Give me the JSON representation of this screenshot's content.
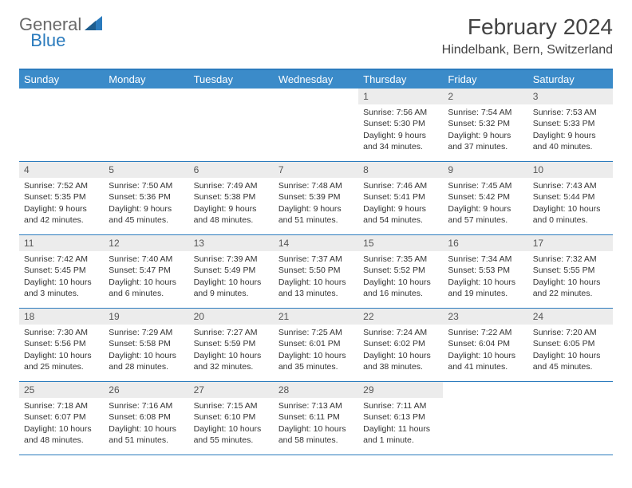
{
  "logo": {
    "text1": "General",
    "text2": "Blue"
  },
  "title": "February 2024",
  "location": "Hindelbank, Bern, Switzerland",
  "colors": {
    "header_bg": "#3b8bc9",
    "border": "#2b7bbd",
    "daynum_bg": "#ececec",
    "logo_gray": "#6a6a6a",
    "logo_blue": "#2b7bbd"
  },
  "weekdays": [
    "Sunday",
    "Monday",
    "Tuesday",
    "Wednesday",
    "Thursday",
    "Friday",
    "Saturday"
  ],
  "leading_blanks": 4,
  "days": [
    {
      "n": "1",
      "sunrise": "7:56 AM",
      "sunset": "5:30 PM",
      "daylight": "9 hours and 34 minutes."
    },
    {
      "n": "2",
      "sunrise": "7:54 AM",
      "sunset": "5:32 PM",
      "daylight": "9 hours and 37 minutes."
    },
    {
      "n": "3",
      "sunrise": "7:53 AM",
      "sunset": "5:33 PM",
      "daylight": "9 hours and 40 minutes."
    },
    {
      "n": "4",
      "sunrise": "7:52 AM",
      "sunset": "5:35 PM",
      "daylight": "9 hours and 42 minutes."
    },
    {
      "n": "5",
      "sunrise": "7:50 AM",
      "sunset": "5:36 PM",
      "daylight": "9 hours and 45 minutes."
    },
    {
      "n": "6",
      "sunrise": "7:49 AM",
      "sunset": "5:38 PM",
      "daylight": "9 hours and 48 minutes."
    },
    {
      "n": "7",
      "sunrise": "7:48 AM",
      "sunset": "5:39 PM",
      "daylight": "9 hours and 51 minutes."
    },
    {
      "n": "8",
      "sunrise": "7:46 AM",
      "sunset": "5:41 PM",
      "daylight": "9 hours and 54 minutes."
    },
    {
      "n": "9",
      "sunrise": "7:45 AM",
      "sunset": "5:42 PM",
      "daylight": "9 hours and 57 minutes."
    },
    {
      "n": "10",
      "sunrise": "7:43 AM",
      "sunset": "5:44 PM",
      "daylight": "10 hours and 0 minutes."
    },
    {
      "n": "11",
      "sunrise": "7:42 AM",
      "sunset": "5:45 PM",
      "daylight": "10 hours and 3 minutes."
    },
    {
      "n": "12",
      "sunrise": "7:40 AM",
      "sunset": "5:47 PM",
      "daylight": "10 hours and 6 minutes."
    },
    {
      "n": "13",
      "sunrise": "7:39 AM",
      "sunset": "5:49 PM",
      "daylight": "10 hours and 9 minutes."
    },
    {
      "n": "14",
      "sunrise": "7:37 AM",
      "sunset": "5:50 PM",
      "daylight": "10 hours and 13 minutes."
    },
    {
      "n": "15",
      "sunrise": "7:35 AM",
      "sunset": "5:52 PM",
      "daylight": "10 hours and 16 minutes."
    },
    {
      "n": "16",
      "sunrise": "7:34 AM",
      "sunset": "5:53 PM",
      "daylight": "10 hours and 19 minutes."
    },
    {
      "n": "17",
      "sunrise": "7:32 AM",
      "sunset": "5:55 PM",
      "daylight": "10 hours and 22 minutes."
    },
    {
      "n": "18",
      "sunrise": "7:30 AM",
      "sunset": "5:56 PM",
      "daylight": "10 hours and 25 minutes."
    },
    {
      "n": "19",
      "sunrise": "7:29 AM",
      "sunset": "5:58 PM",
      "daylight": "10 hours and 28 minutes."
    },
    {
      "n": "20",
      "sunrise": "7:27 AM",
      "sunset": "5:59 PM",
      "daylight": "10 hours and 32 minutes."
    },
    {
      "n": "21",
      "sunrise": "7:25 AM",
      "sunset": "6:01 PM",
      "daylight": "10 hours and 35 minutes."
    },
    {
      "n": "22",
      "sunrise": "7:24 AM",
      "sunset": "6:02 PM",
      "daylight": "10 hours and 38 minutes."
    },
    {
      "n": "23",
      "sunrise": "7:22 AM",
      "sunset": "6:04 PM",
      "daylight": "10 hours and 41 minutes."
    },
    {
      "n": "24",
      "sunrise": "7:20 AM",
      "sunset": "6:05 PM",
      "daylight": "10 hours and 45 minutes."
    },
    {
      "n": "25",
      "sunrise": "7:18 AM",
      "sunset": "6:07 PM",
      "daylight": "10 hours and 48 minutes."
    },
    {
      "n": "26",
      "sunrise": "7:16 AM",
      "sunset": "6:08 PM",
      "daylight": "10 hours and 51 minutes."
    },
    {
      "n": "27",
      "sunrise": "7:15 AM",
      "sunset": "6:10 PM",
      "daylight": "10 hours and 55 minutes."
    },
    {
      "n": "28",
      "sunrise": "7:13 AM",
      "sunset": "6:11 PM",
      "daylight": "10 hours and 58 minutes."
    },
    {
      "n": "29",
      "sunrise": "7:11 AM",
      "sunset": "6:13 PM",
      "daylight": "11 hours and 1 minute."
    }
  ],
  "labels": {
    "sunrise_prefix": "Sunrise: ",
    "sunset_prefix": "Sunset: ",
    "daylight_prefix": "Daylight: "
  }
}
